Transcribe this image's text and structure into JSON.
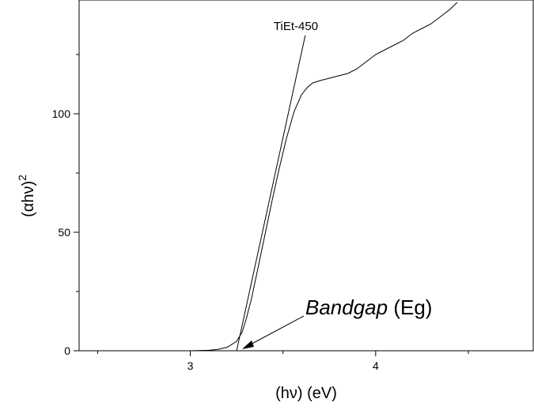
{
  "chart_data": {
    "type": "line",
    "xlabel": "(hν) (eV)",
    "ylabel_main": "(αhν)",
    "ylabel_sup": "2",
    "xlim": [
      2.4,
      4.85
    ],
    "ylim": [
      0,
      148
    ],
    "x_major_ticks": [
      3,
      4
    ],
    "x_minor_ticks": [
      2.5,
      3.5,
      4.5
    ],
    "x_tick_labels": [
      "3",
      "4"
    ],
    "y_major_ticks": [
      0,
      50,
      100
    ],
    "y_minor_ticks": [
      25,
      75,
      125
    ],
    "y_tick_labels": [
      "0",
      "50",
      "100"
    ],
    "grid": false,
    "series": [
      {
        "name": "TiEt-450",
        "x": [
          2.4,
          2.8,
          3.0,
          3.1,
          3.15,
          3.2,
          3.25,
          3.28,
          3.3,
          3.33,
          3.36,
          3.4,
          3.44,
          3.48,
          3.52,
          3.56,
          3.6,
          3.63,
          3.66,
          3.7,
          3.75,
          3.8,
          3.85,
          3.9,
          3.95,
          4.0,
          4.05,
          4.1,
          4.15,
          4.2,
          4.25,
          4.3,
          4.35,
          4.4,
          4.44
        ],
        "y": [
          0,
          0,
          0,
          0.2,
          0.6,
          1.5,
          4,
          8,
          13,
          22,
          33,
          48,
          63,
          77,
          90,
          101,
          108,
          111,
          113,
          114,
          115,
          116,
          117,
          119,
          122,
          125,
          127,
          129,
          131,
          134,
          136,
          138,
          141,
          144,
          147
        ]
      }
    ],
    "tangent_line": {
      "x": [
        3.25,
        3.62
      ],
      "y": [
        0,
        133
      ]
    },
    "annotations": {
      "series_label": "TiEt-450",
      "bandgap_italic": "Bandgap",
      "bandgap_normal": " (Eg)",
      "bandgap_arrow_target": {
        "x": 3.26,
        "y": 0.5
      }
    }
  }
}
